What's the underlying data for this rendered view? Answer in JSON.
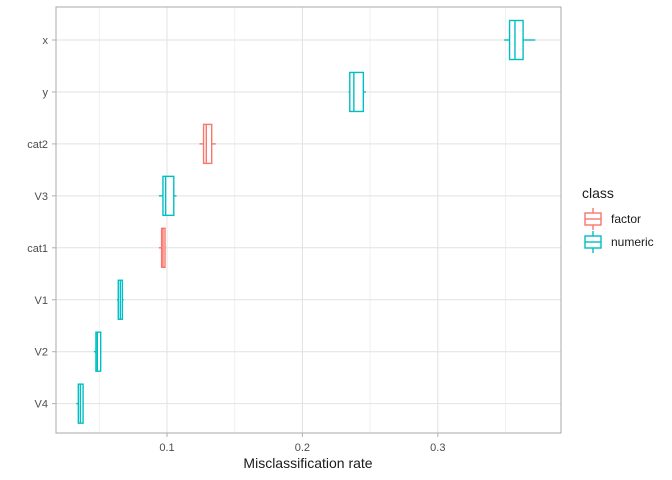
{
  "figure": {
    "background_color": "#ffffff",
    "panel_border_color": "#a9a9a9",
    "major_grid_color": "#e2e2e2",
    "minor_grid_color": "#f0f0f0",
    "tick_mark_color": "#b0b0b0",
    "tick_text_color": "#4d4d4d"
  },
  "chart_data": {
    "type": "boxplot",
    "orientation": "horizontal",
    "title": "",
    "xlabel": "Misclassification rate",
    "ylabel": "",
    "xlim": [
      0.018,
      0.391
    ],
    "x_major_ticks": [
      0.1,
      0.2,
      0.3
    ],
    "x_tick_labels": [
      "0.1",
      "0.2",
      "0.3"
    ],
    "x_minor_ticks": [
      0.05,
      0.15,
      0.25,
      0.35
    ],
    "grid": "on",
    "categories": [
      "x",
      "y",
      "cat2",
      "V3",
      "cat1",
      "V1",
      "V2",
      "V4"
    ],
    "colors": {
      "factor": "#F8766D",
      "numeric": "#00BFC4"
    },
    "legend": {
      "position": "right",
      "title": "class",
      "entries": [
        {
          "label": "factor",
          "color": "#F8766D"
        },
        {
          "label": "numeric",
          "color": "#00BFC4"
        }
      ]
    },
    "series": [
      {
        "variable": "x",
        "class": "numeric",
        "whisker_min": 0.349,
        "q1": 0.353,
        "median": 0.357,
        "q3": 0.363,
        "whisker_max": 0.372
      },
      {
        "variable": "y",
        "class": "numeric",
        "whisker_min": 0.234,
        "q1": 0.235,
        "median": 0.238,
        "q3": 0.245,
        "whisker_max": 0.247
      },
      {
        "variable": "cat2",
        "class": "factor",
        "whisker_min": 0.124,
        "q1": 0.127,
        "median": 0.129,
        "q3": 0.133,
        "whisker_max": 0.136
      },
      {
        "variable": "V3",
        "class": "numeric",
        "whisker_min": 0.094,
        "q1": 0.097,
        "median": 0.099,
        "q3": 0.105,
        "whisker_max": 0.107
      },
      {
        "variable": "cat1",
        "class": "factor",
        "whisker_min": 0.094,
        "q1": 0.096,
        "median": 0.097,
        "q3": 0.0985,
        "whisker_max": 0.099
      },
      {
        "variable": "V1",
        "class": "numeric",
        "whisker_min": 0.063,
        "q1": 0.064,
        "median": 0.0655,
        "q3": 0.067,
        "whisker_max": 0.068
      },
      {
        "variable": "V2",
        "class": "numeric",
        "whisker_min": 0.046,
        "q1": 0.0475,
        "median": 0.0485,
        "q3": 0.051,
        "whisker_max": 0.0515
      },
      {
        "variable": "V4",
        "class": "numeric",
        "whisker_min": 0.033,
        "q1": 0.0345,
        "median": 0.036,
        "q3": 0.038,
        "whisker_max": 0.0385
      }
    ]
  }
}
